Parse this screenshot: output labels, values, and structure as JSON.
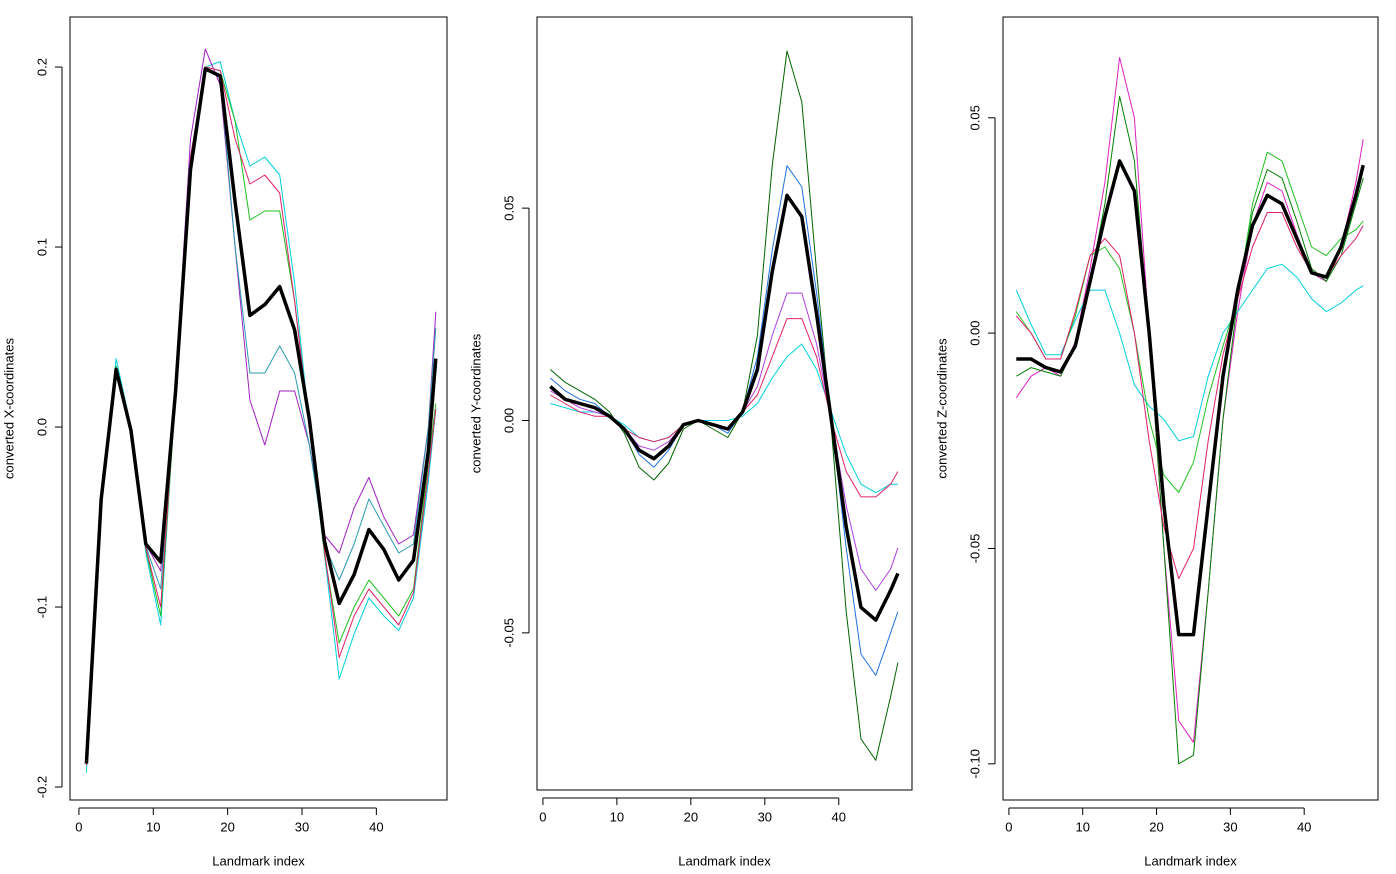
{
  "chart_data": [
    {
      "type": "line",
      "xlabel": "Landmark index",
      "ylabel": "converted X-coordinates",
      "x": [
        1,
        3,
        5,
        7,
        9,
        11,
        13,
        15,
        17,
        19,
        21,
        23,
        25,
        27,
        29,
        31,
        33,
        35,
        37,
        39,
        41,
        43,
        45,
        47,
        48
      ],
      "xlim": [
        -1.2,
        49.5
      ],
      "ylim": [
        -0.2072,
        0.2278
      ],
      "xticks": [
        0,
        10,
        20,
        30,
        40
      ],
      "yticks": [
        -0.2,
        -0.1,
        {
          "value": 0,
          "label": "0.0"
        },
        0.1,
        0.2
      ],
      "series": [
        {
          "color": "#00d0e0",
          "width": 1,
          "values": [
            -0.192,
            -0.04,
            0.038,
            0.0,
            -0.07,
            -0.11,
            0.02,
            0.15,
            0.2,
            0.203,
            0.17,
            0.145,
            0.15,
            0.14,
            0.08,
            0.0,
            -0.07,
            -0.14,
            -0.115,
            -0.095,
            -0.105,
            -0.113,
            -0.095,
            -0.03,
            0.01
          ]
        },
        {
          "color": "#a020c0",
          "width": 1,
          "values": [
            -0.185,
            -0.04,
            0.03,
            0.0,
            -0.065,
            -0.08,
            0.025,
            0.16,
            0.21,
            0.19,
            0.1,
            0.015,
            -0.01,
            0.02,
            0.02,
            -0.01,
            -0.06,
            -0.07,
            -0.045,
            -0.028,
            -0.05,
            -0.065,
            -0.06,
            0.0,
            0.064
          ]
        },
        {
          "color": "#20c020",
          "width": 1,
          "values": [
            -0.188,
            -0.04,
            0.034,
            0.0,
            -0.068,
            -0.105,
            0.018,
            0.148,
            0.2,
            0.198,
            0.17,
            0.115,
            0.12,
            0.12,
            0.07,
            0.0,
            -0.07,
            -0.12,
            -0.1,
            -0.085,
            -0.095,
            -0.105,
            -0.09,
            -0.02,
            0.013
          ]
        },
        {
          "color": "#2a9ab0",
          "width": 1,
          "values": [
            -0.188,
            -0.04,
            0.033,
            0.0,
            -0.066,
            -0.09,
            0.02,
            0.145,
            0.198,
            0.195,
            0.1,
            0.03,
            0.03,
            0.045,
            0.03,
            -0.01,
            -0.065,
            -0.085,
            -0.065,
            -0.04,
            -0.055,
            -0.07,
            -0.065,
            0.0,
            0.055
          ]
        },
        {
          "color": "#e0206a",
          "width": 1,
          "values": [
            -0.188,
            -0.04,
            0.032,
            0.0,
            -0.067,
            -0.1,
            0.02,
            0.15,
            0.2,
            0.198,
            0.16,
            0.135,
            0.14,
            0.13,
            0.07,
            0.0,
            -0.068,
            -0.128,
            -0.105,
            -0.09,
            -0.1,
            -0.11,
            -0.092,
            -0.025,
            0.01
          ]
        },
        {
          "color": "#000000",
          "width": 3.5,
          "values": [
            -0.187,
            -0.04,
            0.032,
            -0.002,
            -0.065,
            -0.075,
            0.02,
            0.143,
            0.199,
            0.195,
            0.125,
            0.062,
            0.068,
            0.078,
            0.054,
            0.004,
            -0.063,
            -0.098,
            -0.082,
            -0.057,
            -0.068,
            -0.085,
            -0.074,
            -0.013,
            0.038
          ]
        }
      ]
    },
    {
      "type": "line",
      "xlabel": "Landmark index",
      "ylabel": "converted Y-coordinates",
      "x": [
        1,
        3,
        5,
        7,
        9,
        11,
        13,
        15,
        17,
        19,
        21,
        23,
        25,
        27,
        29,
        31,
        33,
        35,
        37,
        39,
        41,
        43,
        45,
        47,
        48
      ],
      "xlim": [
        -0.8,
        49.9
      ],
      "ylim": [
        -0.087,
        0.095
      ],
      "xticks": [
        0,
        10,
        20,
        30,
        40
      ],
      "yticks": [
        -0.05,
        {
          "value": 0,
          "label": "0.00"
        },
        0.05
      ],
      "series": [
        {
          "color": "#006400",
          "width": 1,
          "values": [
            0.012,
            0.009,
            0.007,
            0.005,
            0.002,
            -0.003,
            -0.011,
            -0.014,
            -0.01,
            -0.002,
            0.0,
            -0.002,
            -0.004,
            0.002,
            0.02,
            0.06,
            0.087,
            0.075,
            0.035,
            -0.002,
            -0.045,
            -0.075,
            -0.08,
            -0.065,
            -0.057
          ]
        },
        {
          "color": "#00d0e0",
          "width": 1,
          "values": [
            0.004,
            0.003,
            0.002,
            0.002,
            0.001,
            -0.001,
            -0.004,
            -0.005,
            -0.004,
            -0.001,
            0.0,
            0.0,
            0.0,
            0.001,
            0.004,
            0.01,
            0.015,
            0.018,
            0.012,
            0.002,
            -0.008,
            -0.015,
            -0.017,
            -0.015,
            -0.015
          ]
        },
        {
          "color": "#e0206a",
          "width": 1,
          "values": [
            0.006,
            0.004,
            0.002,
            0.001,
            0.001,
            -0.002,
            -0.004,
            -0.005,
            -0.004,
            -0.001,
            0.0,
            -0.001,
            -0.002,
            0.002,
            0.006,
            0.015,
            0.024,
            0.024,
            0.015,
            0.0,
            -0.012,
            -0.018,
            -0.018,
            -0.015,
            -0.012
          ]
        },
        {
          "color": "#2070e0",
          "width": 1,
          "values": [
            0.01,
            0.007,
            0.005,
            0.004,
            0.001,
            -0.002,
            -0.008,
            -0.011,
            -0.007,
            -0.001,
            0.0,
            -0.001,
            -0.003,
            0.002,
            0.015,
            0.04,
            0.06,
            0.055,
            0.03,
            0.0,
            -0.03,
            -0.055,
            -0.06,
            -0.05,
            -0.045
          ]
        },
        {
          "color": "#b040e0",
          "width": 1,
          "values": [
            0.007,
            0.005,
            0.003,
            0.002,
            0.001,
            -0.002,
            -0.006,
            -0.007,
            -0.005,
            -0.001,
            0.0,
            -0.001,
            -0.002,
            0.002,
            0.008,
            0.02,
            0.03,
            0.03,
            0.018,
            0.0,
            -0.02,
            -0.035,
            -0.04,
            -0.035,
            -0.03
          ]
        },
        {
          "color": "#000000",
          "width": 3.5,
          "values": [
            0.008,
            0.005,
            0.004,
            0.003,
            0.001,
            -0.002,
            -0.007,
            -0.009,
            -0.006,
            -0.001,
            0.0,
            -0.001,
            -0.002,
            0.002,
            0.012,
            0.035,
            0.053,
            0.048,
            0.025,
            0.0,
            -0.025,
            -0.044,
            -0.047,
            -0.04,
            -0.036
          ]
        }
      ]
    },
    {
      "type": "line",
      "xlabel": "Landmark index",
      "ylabel": "converted Z-coordinates",
      "x": [
        1,
        3,
        5,
        7,
        9,
        11,
        13,
        15,
        17,
        19,
        21,
        23,
        25,
        27,
        29,
        31,
        33,
        35,
        37,
        39,
        41,
        43,
        45,
        47,
        48
      ],
      "xlim": [
        -0.8,
        50
      ],
      "ylim": [
        -0.1084,
        0.0734
      ],
      "xticks": [
        0,
        10,
        20,
        30,
        40
      ],
      "yticks": [
        {
          "value": -0.1,
          "label": "-0.10"
        },
        -0.05,
        {
          "value": 0,
          "label": "0.00"
        },
        0.05
      ],
      "series": [
        {
          "color": "#e020c0",
          "width": 1,
          "values": [
            -0.015,
            -0.01,
            -0.008,
            -0.01,
            -0.002,
            0.015,
            0.035,
            0.064,
            0.05,
            0.0,
            -0.05,
            -0.09,
            -0.095,
            -0.06,
            -0.02,
            0.005,
            0.025,
            0.035,
            0.033,
            0.023,
            0.014,
            0.012,
            0.02,
            0.035,
            0.045
          ]
        },
        {
          "color": "#00d0e0",
          "width": 1,
          "values": [
            0.01,
            0.002,
            -0.005,
            -0.005,
            0.003,
            0.01,
            0.01,
            0.0,
            -0.012,
            -0.017,
            -0.02,
            -0.025,
            -0.024,
            -0.01,
            0.0,
            0.005,
            0.01,
            0.015,
            0.016,
            0.013,
            0.008,
            0.005,
            0.007,
            0.01,
            0.011
          ]
        },
        {
          "color": "#20c020",
          "width": 1,
          "values": [
            0.005,
            0.0,
            -0.006,
            -0.006,
            0.004,
            0.018,
            0.02,
            0.015,
            0.0,
            -0.02,
            -0.033,
            -0.037,
            -0.03,
            -0.015,
            -0.003,
            0.008,
            0.03,
            0.042,
            0.04,
            0.03,
            0.02,
            0.018,
            0.022,
            0.024,
            0.026
          ]
        },
        {
          "color": "#008000",
          "width": 1,
          "values": [
            -0.01,
            -0.008,
            -0.009,
            -0.01,
            -0.003,
            0.012,
            0.03,
            0.055,
            0.04,
            0.0,
            -0.05,
            -0.1,
            -0.098,
            -0.06,
            -0.02,
            0.008,
            0.028,
            0.038,
            0.036,
            0.026,
            0.015,
            0.012,
            0.018,
            0.03,
            0.036
          ]
        },
        {
          "color": "#e0206a",
          "width": 1,
          "values": [
            0.004,
            0.0,
            -0.006,
            -0.006,
            0.005,
            0.018,
            0.022,
            0.018,
            0.0,
            -0.025,
            -0.045,
            -0.057,
            -0.05,
            -0.025,
            -0.005,
            0.008,
            0.02,
            0.028,
            0.028,
            0.02,
            0.014,
            0.013,
            0.018,
            0.022,
            0.025
          ]
        },
        {
          "color": "#000000",
          "width": 3.5,
          "values": [
            -0.006,
            -0.006,
            -0.008,
            -0.009,
            -0.003,
            0.012,
            0.027,
            0.04,
            0.033,
            0.0,
            -0.04,
            -0.07,
            -0.07,
            -0.04,
            -0.01,
            0.01,
            0.025,
            0.032,
            0.03,
            0.022,
            0.014,
            0.013,
            0.02,
            0.032,
            0.039
          ]
        }
      ]
    }
  ]
}
